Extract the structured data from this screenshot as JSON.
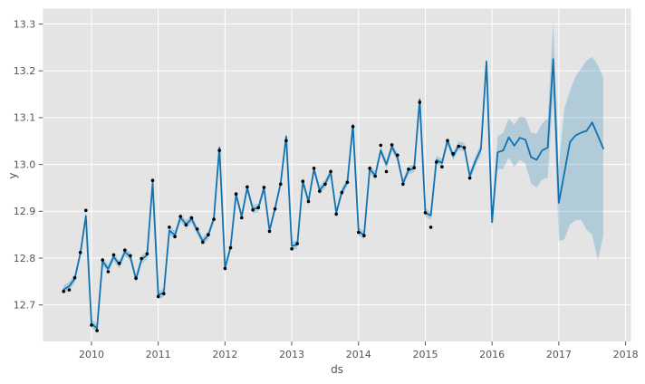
{
  "colors": {
    "line": "#1072b2",
    "band": "rgba(0,114,178,0.22)",
    "points": "#000000",
    "axes_bg": "#e4e4e4",
    "fig_bg": "#ffffff",
    "grid": "#ffffff",
    "tick": "#555555"
  },
  "chart_data": {
    "type": "line",
    "title": "",
    "xlabel": "ds",
    "ylabel": "y",
    "legend": false,
    "grid": true,
    "xlim": [
      2009.272,
      2018.083
    ],
    "ylim": [
      12.622,
      13.333
    ],
    "x_ticks": {
      "values": [
        2010,
        2011,
        2012,
        2013,
        2014,
        2015,
        2016,
        2017,
        2018
      ],
      "labels": [
        "2010",
        "2011",
        "2012",
        "2013",
        "2014",
        "2015",
        "2016",
        "2017",
        "2018"
      ]
    },
    "y_ticks": {
      "values": [
        12.7,
        12.8,
        12.9,
        13.0,
        13.1,
        13.2,
        13.3
      ],
      "labels": [
        "12.7",
        "12.8",
        "12.9",
        "13.0",
        "13.1",
        "13.2",
        "13.3"
      ]
    },
    "n_observed": 74,
    "forecast_start_index": 74,
    "dates": [
      "2009-08",
      "2009-09",
      "2009-10",
      "2009-11",
      "2009-12",
      "2010-01",
      "2010-02",
      "2010-03",
      "2010-04",
      "2010-05",
      "2010-06",
      "2010-07",
      "2010-08",
      "2010-09",
      "2010-10",
      "2010-11",
      "2010-12",
      "2011-01",
      "2011-02",
      "2011-03",
      "2011-04",
      "2011-05",
      "2011-06",
      "2011-07",
      "2011-08",
      "2011-09",
      "2011-10",
      "2011-11",
      "2011-12",
      "2012-01",
      "2012-02",
      "2012-03",
      "2012-04",
      "2012-05",
      "2012-06",
      "2012-07",
      "2012-08",
      "2012-09",
      "2012-10",
      "2012-11",
      "2012-12",
      "2013-01",
      "2013-02",
      "2013-03",
      "2013-04",
      "2013-05",
      "2013-06",
      "2013-07",
      "2013-08",
      "2013-09",
      "2013-10",
      "2013-11",
      "2013-12",
      "2014-01",
      "2014-02",
      "2014-03",
      "2014-04",
      "2014-05",
      "2014-06",
      "2014-07",
      "2014-08",
      "2014-09",
      "2014-10",
      "2014-11",
      "2014-12",
      "2015-01",
      "2015-02",
      "2015-03",
      "2015-04",
      "2015-05",
      "2015-06",
      "2015-07",
      "2015-08",
      "2015-09",
      "2015-10",
      "2015-11",
      "2015-12",
      "2016-01",
      "2016-02",
      "2016-03",
      "2016-04",
      "2016-05",
      "2016-06",
      "2016-07",
      "2016-08",
      "2016-09",
      "2016-10",
      "2016-11",
      "2016-12",
      "2017-01",
      "2017-02",
      "2017-03",
      "2017-04",
      "2017-05",
      "2017-06",
      "2017-07",
      "2017-08",
      "2017-09"
    ],
    "series": {
      "yhat": [
        12.733,
        12.74,
        12.756,
        12.81,
        12.89,
        12.66,
        12.65,
        12.793,
        12.777,
        12.803,
        12.786,
        12.813,
        12.803,
        12.755,
        12.797,
        12.807,
        12.961,
        12.721,
        12.726,
        12.859,
        12.849,
        12.887,
        12.872,
        12.884,
        12.859,
        12.836,
        12.849,
        12.885,
        13.036,
        12.779,
        12.823,
        12.936,
        12.889,
        12.95,
        12.905,
        12.907,
        12.95,
        12.859,
        12.906,
        12.96,
        13.06,
        12.826,
        12.829,
        12.964,
        12.921,
        12.99,
        12.945,
        12.959,
        12.983,
        12.897,
        12.941,
        12.963,
        13.084,
        12.857,
        12.849,
        12.99,
        12.977,
        13.03,
        13.0,
        13.038,
        13.015,
        12.96,
        12.988,
        12.992,
        13.139,
        12.897,
        12.891,
        13.01,
        13.003,
        13.051,
        13.018,
        13.04,
        13.037,
        12.975,
        13.007,
        13.033,
        13.22,
        12.877,
        13.026,
        13.03,
        13.058,
        13.04,
        13.057,
        13.053,
        13.016,
        13.01,
        13.03,
        13.036,
        13.225,
        12.918,
        12.982,
        13.048,
        13.062,
        13.068,
        13.072,
        13.09,
        13.062,
        13.034
      ],
      "yhat_lower": [
        12.724,
        12.731,
        12.747,
        12.801,
        12.881,
        12.651,
        12.641,
        12.784,
        12.768,
        12.794,
        12.777,
        12.804,
        12.794,
        12.746,
        12.788,
        12.798,
        12.952,
        12.712,
        12.717,
        12.85,
        12.84,
        12.878,
        12.863,
        12.875,
        12.85,
        12.827,
        12.84,
        12.876,
        13.027,
        12.77,
        12.814,
        12.927,
        12.88,
        12.941,
        12.896,
        12.898,
        12.941,
        12.85,
        12.897,
        12.951,
        13.051,
        12.817,
        12.82,
        12.955,
        12.912,
        12.981,
        12.936,
        12.95,
        12.974,
        12.888,
        12.932,
        12.954,
        13.075,
        12.848,
        12.84,
        12.981,
        12.968,
        13.021,
        12.991,
        13.029,
        13.006,
        12.951,
        12.979,
        12.983,
        13.13,
        12.888,
        12.882,
        13.001,
        12.994,
        13.042,
        13.009,
        13.031,
        13.028,
        12.966,
        12.996,
        13.021,
        13.206,
        12.862,
        12.99,
        12.99,
        13.015,
        12.995,
        13.01,
        13.002,
        12.96,
        12.95,
        12.968,
        12.972,
        13.148,
        12.836,
        12.84,
        12.872,
        12.88,
        12.882,
        12.86,
        12.85,
        12.795,
        12.848
      ],
      "yhat_upper": [
        12.742,
        12.749,
        12.765,
        12.819,
        12.899,
        12.669,
        12.659,
        12.802,
        12.786,
        12.812,
        12.795,
        12.822,
        12.812,
        12.764,
        12.806,
        12.816,
        12.97,
        12.73,
        12.735,
        12.868,
        12.858,
        12.896,
        12.881,
        12.893,
        12.868,
        12.845,
        12.858,
        12.894,
        13.045,
        12.788,
        12.832,
        12.945,
        12.898,
        12.959,
        12.914,
        12.916,
        12.959,
        12.868,
        12.915,
        12.969,
        13.069,
        12.835,
        12.838,
        12.973,
        12.93,
        12.999,
        12.954,
        12.968,
        12.992,
        12.906,
        12.95,
        12.972,
        13.093,
        12.866,
        12.858,
        12.999,
        12.986,
        13.039,
        13.009,
        13.047,
        13.024,
        12.969,
        12.997,
        13.001,
        13.148,
        12.906,
        12.9,
        13.019,
        13.012,
        13.06,
        13.027,
        13.049,
        13.046,
        12.984,
        13.018,
        13.045,
        13.233,
        12.894,
        13.06,
        13.068,
        13.098,
        13.085,
        13.103,
        13.1,
        13.068,
        13.066,
        13.088,
        13.098,
        13.303,
        12.998,
        13.12,
        13.158,
        13.188,
        13.205,
        13.222,
        13.23,
        13.212,
        13.186
      ],
      "observed": [
        12.729,
        12.732,
        12.758,
        12.812,
        12.902,
        12.657,
        12.645,
        12.796,
        12.771,
        12.807,
        12.789,
        12.817,
        12.805,
        12.757,
        12.799,
        12.809,
        12.966,
        12.718,
        12.724,
        12.866,
        12.846,
        12.889,
        12.871,
        12.886,
        12.862,
        12.834,
        12.85,
        12.883,
        13.03,
        12.778,
        12.822,
        12.937,
        12.886,
        12.952,
        12.903,
        12.908,
        12.951,
        12.857,
        12.905,
        12.958,
        13.051,
        12.82,
        12.831,
        12.964,
        12.921,
        12.992,
        12.943,
        12.958,
        12.985,
        12.894,
        12.94,
        12.962,
        13.081,
        12.855,
        12.848,
        12.992,
        12.975,
        13.041,
        12.985,
        13.042,
        13.02,
        12.958,
        12.99,
        12.993,
        13.133,
        12.897,
        12.866,
        13.005,
        12.995,
        13.051,
        13.023,
        13.039,
        13.036,
        12.971
      ]
    }
  }
}
